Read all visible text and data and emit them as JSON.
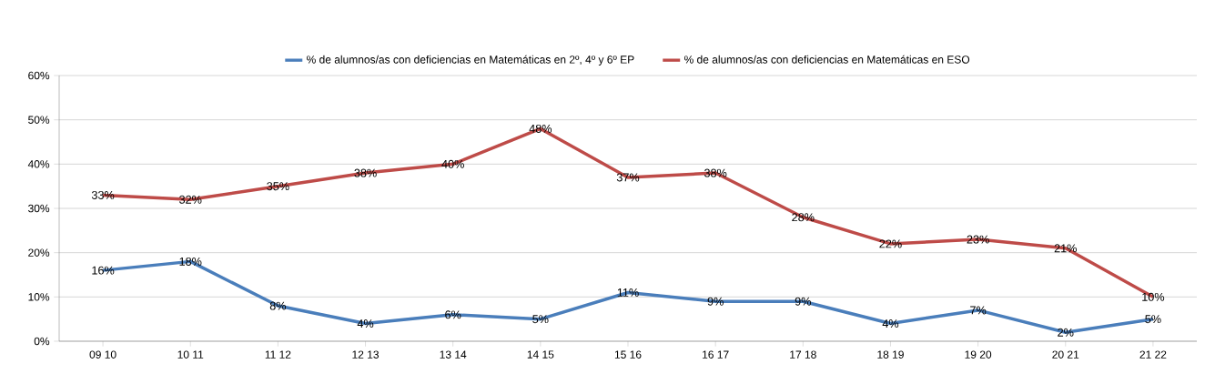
{
  "chart_data": {
    "type": "line",
    "categories": [
      "09 10",
      "10 11",
      "11 12",
      "12 13",
      "13 14",
      "14 15",
      "15 16",
      "16 17",
      "17 18",
      "18 19",
      "19 20",
      "20 21",
      "21 22"
    ],
    "series": [
      {
        "name": "% de alumnos/as con deficiencias en  Matemáticas en 2º, 4º y 6º EP",
        "color": "#4a7ebb",
        "values": [
          16,
          18,
          8,
          4,
          6,
          5,
          11,
          9,
          9,
          4,
          7,
          2,
          5
        ],
        "value_labels": [
          "16%",
          "18%",
          "8%",
          "4%",
          "6%",
          "5%",
          "11%",
          "9%",
          "9%",
          "4%",
          "7%",
          "2%",
          "5%"
        ]
      },
      {
        "name": "% de alumnos/as con deficiencias en  Matemáticas en ESO",
        "color": "#be4b48",
        "values": [
          33,
          32,
          35,
          38,
          40,
          48,
          37,
          38,
          28,
          22,
          23,
          21,
          10
        ],
        "value_labels": [
          "33%",
          "32%",
          "35%",
          "38%",
          "40%",
          "48%",
          "37%",
          "38%",
          "28%",
          "22%",
          "23%",
          "21%",
          "10%"
        ]
      }
    ],
    "ylim": [
      0,
      60
    ],
    "yticks": [
      {
        "value": 0,
        "label": "0%"
      },
      {
        "value": 10,
        "label": "10%"
      },
      {
        "value": 20,
        "label": "20%"
      },
      {
        "value": 30,
        "label": "30%"
      },
      {
        "value": 40,
        "label": "40%"
      },
      {
        "value": 50,
        "label": "50%"
      },
      {
        "value": 60,
        "label": "60%"
      }
    ],
    "grid": "y",
    "legend": "top",
    "marker": "none",
    "line_style": "solid"
  }
}
